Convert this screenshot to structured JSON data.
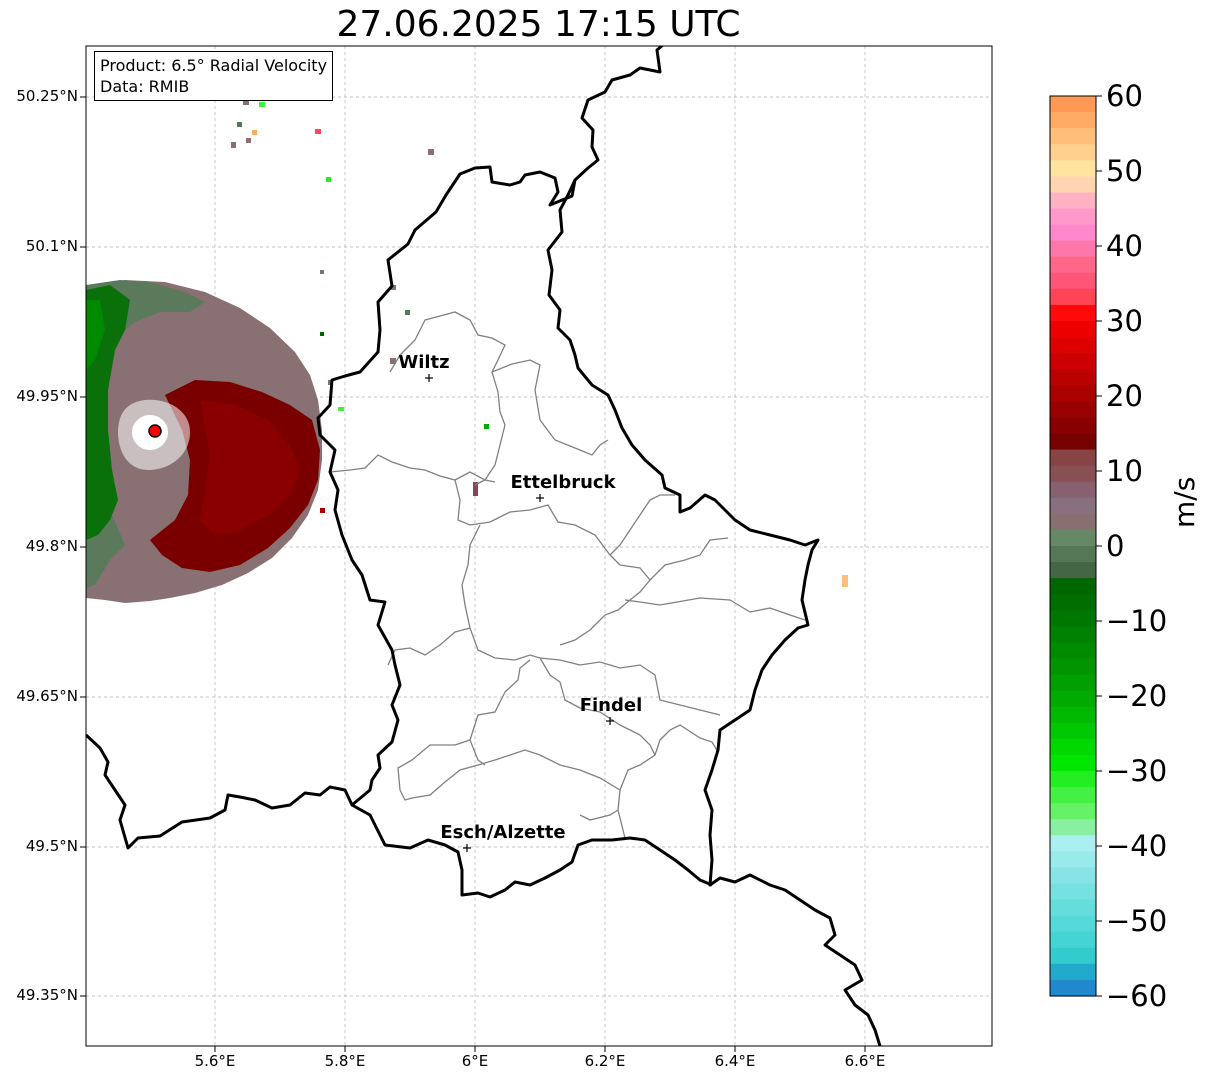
{
  "title": "27.06.2025 17:15 UTC",
  "info": {
    "product": "Product: 6.5° Radial Velocity",
    "source": "Data: RMIB"
  },
  "axes": {
    "lat_ticks": [
      "50.25°N",
      "50.1°N",
      "49.95°N",
      "49.8°N",
      "49.65°N",
      "49.5°N",
      "49.35°N"
    ],
    "lon_ticks": [
      "5.6°E",
      "5.8°E",
      "6°E",
      "6.2°E",
      "6.4°E",
      "6.6°E"
    ]
  },
  "cities": [
    {
      "name": "Wiltz",
      "lon": 5.93,
      "lat": 49.97
    },
    {
      "name": "Ettelbruck",
      "lon": 6.1,
      "lat": 49.85
    },
    {
      "name": "Findel",
      "lon": 6.21,
      "lat": 49.63
    },
    {
      "name": "Esch/Alzette",
      "lon": 5.99,
      "lat": 49.5
    }
  ],
  "radar_site": {
    "lon": 5.51,
    "lat": 49.92
  },
  "colorbar": {
    "unit": "m/s",
    "ticks": [
      "60",
      "50",
      "40",
      "30",
      "20",
      "10",
      "0",
      "−10",
      "−20",
      "−30",
      "−40",
      "−50",
      "−60"
    ],
    "colors": [
      "#ff9955",
      "#ffab66",
      "#ffbe7a",
      "#ffd08e",
      "#ffe4a0",
      "#ffd4b0",
      "#ffb3c2",
      "#ff99cc",
      "#ff88cc",
      "#ff77aa",
      "#ff6688",
      "#ff5577",
      "#ff4455",
      "#ff0a0a",
      "#ee0000",
      "#dd0000",
      "#cc0000",
      "#bb0000",
      "#aa0000",
      "#990000",
      "#880000",
      "#770000",
      "#884444",
      "#885055",
      "#886070",
      "#887080",
      "#887070",
      "#668866",
      "#557755",
      "#446644",
      "#006600",
      "#006e00",
      "#007700",
      "#008000",
      "#008a00",
      "#009500",
      "#00a000",
      "#00aa00",
      "#00b800",
      "#00c800",
      "#00d800",
      "#00e600",
      "#22ee22",
      "#44f044",
      "#66f266",
      "#88f0a0",
      "#aaf0f0",
      "#99eaea",
      "#88e4e4",
      "#77e0e0",
      "#66dddd",
      "#55d8d8",
      "#44d4d4",
      "#33cccc",
      "#22aacc",
      "#2288cc"
    ]
  },
  "colors": {
    "border": "#000000",
    "cantons": "#808080",
    "grid": "#b0b0b0",
    "radar_site": "#ff0000"
  }
}
